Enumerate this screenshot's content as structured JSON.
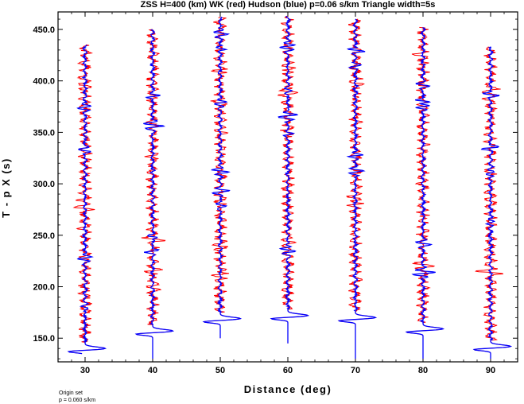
{
  "chart_data": {
    "type": "line",
    "title": "ZSS H=400 (km) WK (red) Hudson (blue) p=0.06 s/km Triangle width=5s",
    "xlabel": "Distance (deg)",
    "ylabel": "T - p X (s)",
    "xlim": [
      26,
      94
    ],
    "ylim": [
      127,
      467
    ],
    "xticks": [
      30,
      40,
      50,
      60,
      70,
      80,
      90
    ],
    "xtick_labels": [
      "30",
      "40",
      "50",
      "60",
      "70",
      "80",
      "90"
    ],
    "yticks": [
      150,
      200,
      250,
      300,
      350,
      400,
      450
    ],
    "ytick_labels": [
      "150.0",
      "200.0",
      "250.0",
      "300.0",
      "350.0",
      "400.0",
      "450.0"
    ],
    "grid": false,
    "series": [
      {
        "name": "WK",
        "color": "#ff0000"
      },
      {
        "name": "Hudson",
        "color": "#0000ff"
      }
    ],
    "traces": [
      {
        "distance": 30,
        "start_time": 135,
        "end_time": 435,
        "first_arrival": 138
      },
      {
        "distance": 40,
        "start_time": 130,
        "end_time": 450,
        "first_arrival": 155
      },
      {
        "distance": 50,
        "start_time": 150,
        "end_time": 462,
        "first_arrival": 167
      },
      {
        "distance": 60,
        "start_time": 145,
        "end_time": 463,
        "first_arrival": 170
      },
      {
        "distance": 70,
        "start_time": 130,
        "end_time": 460,
        "first_arrival": 168
      },
      {
        "distance": 80,
        "start_time": 130,
        "end_time": 452,
        "first_arrival": 157
      },
      {
        "distance": 90,
        "start_time": 130,
        "end_time": 433,
        "first_arrival": 140
      }
    ]
  },
  "footnote": {
    "line1": "Origin set",
    "line2": "p = 0.060 s/km"
  }
}
